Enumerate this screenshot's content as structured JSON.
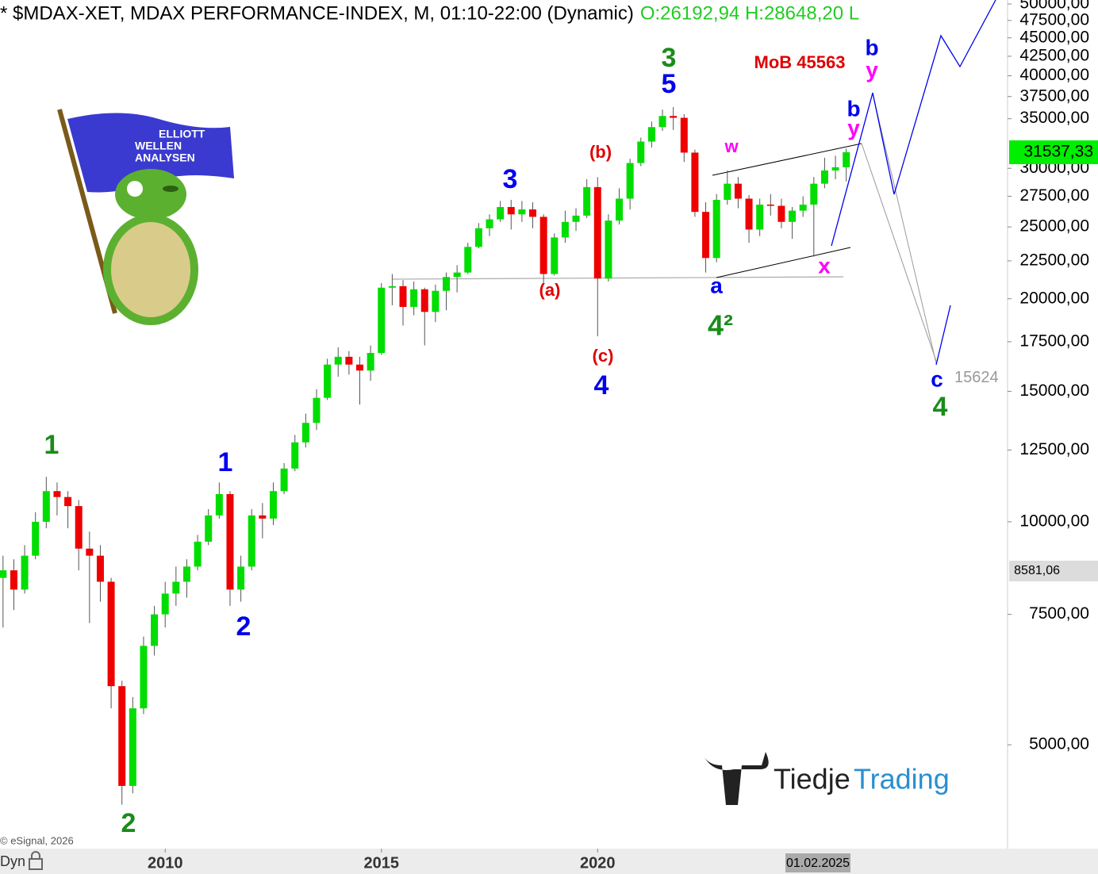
{
  "chart_data": {
    "type": "candlestick",
    "title": "* $MDAX-XET, MDAX PERFORMANCE-INDEX, M, 01:10-22:00 (Dynamic)",
    "ohlc_summary": "O:26192,94 H:28648,20 L",
    "log_scale": true,
    "xlim": [
      2006.18,
      2029.48
    ],
    "ylim": [
      3621,
      50620
    ],
    "xticks": [
      2010,
      2015,
      2020
    ],
    "yticks": [
      {
        "value": 50000,
        "label": "50000,00"
      },
      {
        "value": 47500,
        "label": "47500,00"
      },
      {
        "value": 45000,
        "label": "45000,00"
      },
      {
        "value": 42500,
        "label": "42500,00"
      },
      {
        "value": 40000,
        "label": "40000,00"
      },
      {
        "value": 37500,
        "label": "37500,00"
      },
      {
        "value": 35000,
        "label": "35000,00"
      },
      {
        "value": 30000,
        "label": "30000,00"
      },
      {
        "value": 27500,
        "label": "27500,00"
      },
      {
        "value": 25000,
        "label": "25000,00"
      },
      {
        "value": 22500,
        "label": "22500,00"
      },
      {
        "value": 20000,
        "label": "20000,00"
      },
      {
        "value": 17500,
        "label": "17500,00"
      },
      {
        "value": 15000,
        "label": "15000,00"
      },
      {
        "value": 12500,
        "label": "12500,00"
      },
      {
        "value": 10000,
        "label": "10000,00"
      },
      {
        "value": 7500,
        "label": "7500,00"
      },
      {
        "value": 5000,
        "label": "5000,00"
      }
    ],
    "up_color": "#00dd00",
    "down_color": "#ee0000",
    "candles": {
      "x": [
        2006.25,
        2006.5,
        2006.75,
        2007,
        2007.25,
        2007.5,
        2007.75,
        2008,
        2008.25,
        2008.5,
        2008.75,
        2009,
        2009.25,
        2009.5,
        2009.75,
        2010,
        2010.25,
        2010.5,
        2010.75,
        2011,
        2011.25,
        2011.5,
        2011.75,
        2012,
        2012.25,
        2012.5,
        2012.75,
        2013,
        2013.25,
        2013.5,
        2013.75,
        2014,
        2014.25,
        2014.5,
        2014.75,
        2015,
        2015.25,
        2015.5,
        2015.75,
        2016,
        2016.25,
        2016.5,
        2016.75,
        2017,
        2017.25,
        2017.5,
        2017.75,
        2018,
        2018.25,
        2018.5,
        2018.75,
        2019,
        2019.25,
        2019.5,
        2019.75,
        2020,
        2020.25,
        2020.5,
        2020.75,
        2021,
        2021.25,
        2021.5,
        2021.75,
        2022,
        2022.25,
        2022.5,
        2022.75,
        2023,
        2023.25,
        2023.5,
        2023.75,
        2024,
        2024.25,
        2024.5,
        2024.75,
        2025,
        2025.25,
        2025.5,
        2025.75
      ],
      "open": [
        8400,
        8600,
        8100,
        9000,
        10000,
        11000,
        10800,
        10500,
        9200,
        9000,
        8300,
        6000,
        4400,
        5600,
        6800,
        7500,
        8000,
        8300,
        8700,
        9400,
        10200,
        10900,
        8100,
        8700,
        10200,
        10100,
        11000,
        11800,
        12800,
        13600,
        14700,
        16300,
        16700,
        16300,
        16000,
        16900,
        20700,
        20800,
        19500,
        20600,
        19200,
        20500,
        21400,
        21700,
        23500,
        24900,
        25600,
        26600,
        26000,
        26400,
        25800,
        21600,
        24200,
        25400,
        25900,
        28300,
        21300,
        25500,
        27300,
        30500,
        32600,
        34100,
        35300,
        35100,
        31500,
        26200,
        22700,
        27200,
        28600,
        27300,
        24800,
        26800,
        26700,
        25400,
        26300,
        26800,
        28600,
        29800,
        30100
      ],
      "high": [
        9000,
        8900,
        9300,
        10300,
        11500,
        11300,
        11000,
        10700,
        9700,
        9300,
        8400,
        6100,
        5800,
        7000,
        7700,
        8300,
        8700,
        8900,
        9600,
        10400,
        11300,
        11000,
        9000,
        10400,
        10600,
        11300,
        12000,
        13100,
        14000,
        15100,
        16600,
        17200,
        17000,
        16700,
        17300,
        21000,
        21600,
        21200,
        21100,
        20700,
        20900,
        21700,
        22200,
        23800,
        25300,
        26000,
        27100,
        27200,
        27100,
        27000,
        26000,
        24500,
        26300,
        26500,
        29000,
        29200,
        26000,
        28200,
        30900,
        33000,
        34700,
        36000,
        36300,
        35500,
        31800,
        27000,
        27700,
        29800,
        29200,
        27600,
        27300,
        27700,
        27300,
        26600,
        27500,
        29200,
        31000,
        31200,
        31900
      ],
      "low": [
        7200,
        7600,
        8000,
        8900,
        9800,
        10200,
        9800,
        8600,
        7300,
        7800,
        5600,
        4150,
        4300,
        5500,
        6600,
        7200,
        7700,
        7900,
        8600,
        9300,
        10100,
        7700,
        7800,
        8600,
        9500,
        9900,
        10900,
        11700,
        12600,
        13300,
        14600,
        15700,
        15800,
        14400,
        15500,
        16800,
        19600,
        18400,
        19000,
        17300,
        18600,
        19300,
        20400,
        21600,
        23400,
        24300,
        25400,
        24800,
        25400,
        24900,
        21000,
        21500,
        23800,
        24700,
        25700,
        17800,
        21100,
        25200,
        26400,
        30200,
        32000,
        33700,
        33800,
        30600,
        25800,
        21700,
        22400,
        26800,
        26500,
        23800,
        24300,
        25900,
        24900,
        24100,
        25800,
        22800,
        28200,
        29000,
        28800
      ],
      "close": [
        8600,
        8100,
        9000,
        10000,
        11000,
        10800,
        10500,
        9200,
        9000,
        8300,
        6000,
        4400,
        5600,
        6800,
        7500,
        8000,
        8300,
        8700,
        9400,
        10200,
        10900,
        8100,
        8700,
        10200,
        10100,
        11000,
        11800,
        12800,
        13600,
        14700,
        16300,
        16700,
        16300,
        16000,
        16900,
        20700,
        20800,
        19500,
        20600,
        19200,
        20500,
        21400,
        21700,
        23500,
        24900,
        25600,
        26600,
        26000,
        26400,
        25800,
        21600,
        24200,
        25400,
        25900,
        28300,
        21300,
        25500,
        27300,
        30500,
        32600,
        34100,
        35300,
        35100,
        31500,
        26200,
        22700,
        27200,
        28600,
        27300,
        24800,
        26800,
        26700,
        25400,
        26300,
        26800,
        28600,
        29800,
        30100,
        31537.33
      ]
    },
    "last_price": {
      "value": 31537.33,
      "label": "31537,33"
    },
    "marker_price": {
      "value": 8581.06,
      "label": "8581,06"
    },
    "target": 15624,
    "crosshair_date": "01.02.2025",
    "mode_label": "Dyn",
    "source": "© eSignal, 2026",
    "annotations": [
      {
        "text": "1",
        "color": "#1a8c1a"
      },
      {
        "text": "2",
        "color": "#1a8c1a"
      },
      {
        "text": "1",
        "color": "#0000ee"
      },
      {
        "text": "2",
        "color": "#0000ee"
      },
      {
        "text": "3",
        "color": "#0000ee"
      },
      {
        "text": "(a)",
        "color": "#e00000"
      },
      {
        "text": "(b)",
        "color": "#e00000"
      },
      {
        "text": "(c)",
        "color": "#e00000"
      },
      {
        "text": "4",
        "color": "#0000ee"
      },
      {
        "text": "3",
        "color": "#1a8c1a"
      },
      {
        "text": "5",
        "color": "#0000ee"
      },
      {
        "text": "MoB 45563",
        "color": "#e00000"
      },
      {
        "text": "w",
        "color": "#ff00ff"
      },
      {
        "text": "a",
        "color": "#0000ee"
      },
      {
        "text": "4²",
        "color": "#1a8c1a"
      },
      {
        "text": "x",
        "color": "#ff00ff"
      },
      {
        "text": "b",
        "color": "#0000ee"
      },
      {
        "text": "y",
        "color": "#ff00ff"
      },
      {
        "text": "b",
        "color": "#0000ee"
      },
      {
        "text": "y",
        "color": "#ff00ff"
      },
      {
        "text": "c",
        "color": "#0000ee"
      },
      {
        "text": "4",
        "color": "#1a8c1a"
      }
    ]
  },
  "logos": {
    "flag": [
      "ELLIOTT",
      "WELLEN",
      "ANALYSEN"
    ],
    "brand_1": "Tiedje",
    "brand_2": "Trading"
  }
}
